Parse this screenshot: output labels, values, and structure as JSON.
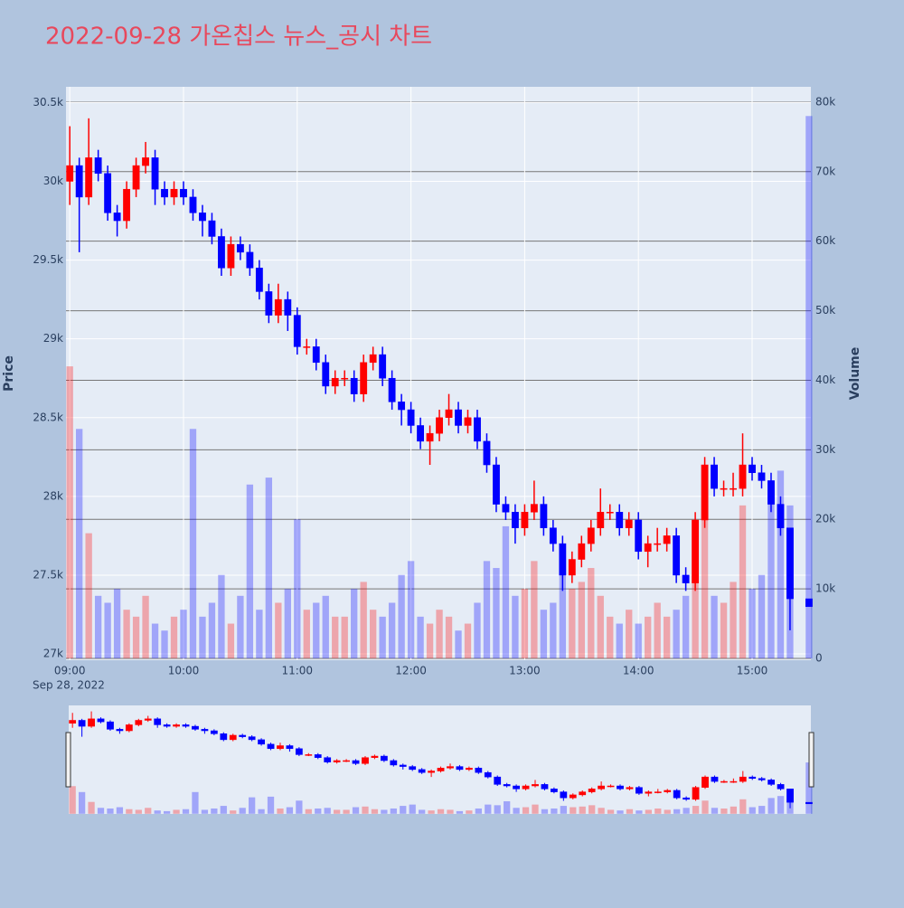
{
  "chart_data": {
    "type": "candlestick",
    "title": "2022-09-28 가온칩스 뉴스_공시 차트",
    "y_label": "Price",
    "y2_label": "Volume",
    "x_date_label": "Sep 28, 2022",
    "increasing_color": "#ff0000",
    "decreasing_color": "#0000ff",
    "grid": true,
    "x": [
      "2022-09-28 09:00",
      "2022-09-28 09:05",
      "2022-09-28 09:10",
      "2022-09-28 09:15",
      "2022-09-28 09:20",
      "2022-09-28 09:25",
      "2022-09-28 09:30",
      "2022-09-28 09:35",
      "2022-09-28 09:40",
      "2022-09-28 09:45",
      "2022-09-28 09:50",
      "2022-09-28 09:55",
      "2022-09-28 10:00",
      "2022-09-28 10:05",
      "2022-09-28 10:10",
      "2022-09-28 10:15",
      "2022-09-28 10:20",
      "2022-09-28 10:25",
      "2022-09-28 10:30",
      "2022-09-28 10:35",
      "2022-09-28 10:40",
      "2022-09-28 10:45",
      "2022-09-28 10:50",
      "2022-09-28 10:55",
      "2022-09-28 11:00",
      "2022-09-28 11:05",
      "2022-09-28 11:10",
      "2022-09-28 11:15",
      "2022-09-28 11:20",
      "2022-09-28 11:25",
      "2022-09-28 11:30",
      "2022-09-28 11:35",
      "2022-09-28 11:40",
      "2022-09-28 11:45",
      "2022-09-28 11:50",
      "2022-09-28 11:55",
      "2022-09-28 12:00",
      "2022-09-28 12:05",
      "2022-09-28 12:10",
      "2022-09-28 12:15",
      "2022-09-28 12:20",
      "2022-09-28 12:25",
      "2022-09-28 12:30",
      "2022-09-28 12:35",
      "2022-09-28 12:40",
      "2022-09-28 12:45",
      "2022-09-28 12:50",
      "2022-09-28 12:55",
      "2022-09-28 13:00",
      "2022-09-28 13:05",
      "2022-09-28 13:10",
      "2022-09-28 13:15",
      "2022-09-28 13:20",
      "2022-09-28 13:25",
      "2022-09-28 13:30",
      "2022-09-28 13:35",
      "2022-09-28 13:40",
      "2022-09-28 13:45",
      "2022-09-28 13:50",
      "2022-09-28 13:55",
      "2022-09-28 14:00",
      "2022-09-28 14:05",
      "2022-09-28 14:10",
      "2022-09-28 14:15",
      "2022-09-28 14:20",
      "2022-09-28 14:25",
      "2022-09-28 14:30",
      "2022-09-28 14:35",
      "2022-09-28 14:40",
      "2022-09-28 14:45",
      "2022-09-28 14:50",
      "2022-09-28 14:55",
      "2022-09-28 15:00",
      "2022-09-28 15:05",
      "2022-09-28 15:10",
      "2022-09-28 15:15",
      "2022-09-28 15:20",
      "2022-09-28 15:30"
    ],
    "open": [
      30000,
      30100,
      29900,
      30150,
      30050,
      29800,
      29750,
      29950,
      30100,
      30150,
      29950,
      29900,
      29950,
      29900,
      29800,
      29750,
      29650,
      29450,
      29600,
      29550,
      29450,
      29300,
      29150,
      29250,
      29150,
      28950,
      28950,
      28850,
      28700,
      28750,
      28750,
      28650,
      28850,
      28900,
      28750,
      28600,
      28550,
      28450,
      28350,
      28400,
      28500,
      28550,
      28450,
      28500,
      28350,
      28200,
      27950,
      27900,
      27800,
      27900,
      27950,
      27800,
      27700,
      27500,
      27600,
      27700,
      27800,
      27900,
      27900,
      27800,
      27850,
      27650,
      27700,
      27700,
      27750,
      27500,
      27450,
      27850,
      28200,
      28050,
      28050,
      28050,
      28200,
      28150,
      28100,
      27950,
      27800,
      27350
    ],
    "high": [
      30350,
      30150,
      30400,
      30200,
      30100,
      29850,
      30000,
      30150,
      30250,
      30200,
      30000,
      30000,
      30000,
      29950,
      29850,
      29800,
      29700,
      29650,
      29650,
      29600,
      29500,
      29350,
      29350,
      29300,
      29200,
      29000,
      29000,
      28900,
      28800,
      28800,
      28800,
      28900,
      28950,
      28950,
      28800,
      28650,
      28600,
      28500,
      28450,
      28550,
      28650,
      28600,
      28550,
      28550,
      28400,
      28250,
      28000,
      27950,
      27950,
      28100,
      28000,
      27850,
      27750,
      27650,
      27750,
      27850,
      28050,
      27950,
      27950,
      27900,
      27900,
      27750,
      27800,
      27800,
      27800,
      27550,
      27900,
      28250,
      28250,
      28100,
      28150,
      28400,
      28250,
      28200,
      28150,
      28000,
      27800,
      27350
    ],
    "low": [
      29850,
      29550,
      29850,
      30000,
      29750,
      29650,
      29700,
      29900,
      30050,
      29850,
      29850,
      29850,
      29850,
      29750,
      29650,
      29600,
      29400,
      29400,
      29500,
      29400,
      29250,
      29100,
      29100,
      29050,
      28900,
      28900,
      28800,
      28650,
      28650,
      28700,
      28600,
      28600,
      28800,
      28700,
      28550,
      28450,
      28400,
      28300,
      28200,
      28350,
      28450,
      28400,
      28400,
      28300,
      28150,
      27900,
      27850,
      27700,
      27750,
      27850,
      27750,
      27650,
      27400,
      27450,
      27550,
      27650,
      27750,
      27850,
      27750,
      27750,
      27600,
      27550,
      27650,
      27650,
      27450,
      27400,
      27400,
      27800,
      28000,
      28000,
      28000,
      28000,
      28100,
      28050,
      27900,
      27750,
      27150,
      27300
    ],
    "close": [
      30100,
      29900,
      30150,
      30050,
      29800,
      29750,
      29950,
      30100,
      30150,
      29950,
      29900,
      29950,
      29900,
      29800,
      29750,
      29650,
      29450,
      29600,
      29550,
      29450,
      29300,
      29150,
      29250,
      29150,
      28950,
      28950,
      28850,
      28700,
      28750,
      28750,
      28650,
      28850,
      28900,
      28750,
      28600,
      28550,
      28450,
      28350,
      28400,
      28500,
      28550,
      28450,
      28500,
      28350,
      28200,
      27950,
      27900,
      27800,
      27900,
      27950,
      27800,
      27700,
      27500,
      27600,
      27700,
      27800,
      27900,
      27900,
      27800,
      27850,
      27650,
      27700,
      27700,
      27750,
      27500,
      27450,
      27850,
      28200,
      28050,
      28050,
      28050,
      28200,
      28150,
      28100,
      27950,
      27800,
      27350,
      27300
    ],
    "volume": [
      42000,
      33000,
      18000,
      9000,
      8000,
      10000,
      7000,
      6000,
      9000,
      5000,
      4000,
      6000,
      7000,
      33000,
      6000,
      8000,
      12000,
      5000,
      9000,
      25000,
      7000,
      26000,
      8000,
      10000,
      20000,
      7000,
      8000,
      9000,
      6000,
      6000,
      10000,
      11000,
      7000,
      6000,
      8000,
      12000,
      14000,
      6000,
      5000,
      7000,
      6000,
      4000,
      5000,
      8000,
      14000,
      13000,
      19000,
      9000,
      10000,
      14000,
      7000,
      8000,
      12000,
      10000,
      11000,
      13000,
      9000,
      6000,
      5000,
      7000,
      5000,
      6000,
      8000,
      6000,
      7000,
      9000,
      12000,
      20000,
      9000,
      8000,
      11000,
      22000,
      10000,
      12000,
      24000,
      27000,
      22000,
      78000
    ],
    "xlim": [
      "2022-09-28 08:58",
      "2022-09-28 15:31"
    ],
    "xticks": [
      {
        "value": "2022-09-28 09:00",
        "label": "09:00"
      },
      {
        "value": "2022-09-28 10:00",
        "label": "10:00"
      },
      {
        "value": "2022-09-28 11:00",
        "label": "11:00"
      },
      {
        "value": "2022-09-28 12:00",
        "label": "12:00"
      },
      {
        "value": "2022-09-28 13:00",
        "label": "13:00"
      },
      {
        "value": "2022-09-28 14:00",
        "label": "14:00"
      },
      {
        "value": "2022-09-28 15:00",
        "label": "15:00"
      }
    ],
    "ylim": [
      26960,
      30600
    ],
    "yticks": [
      {
        "value": 27000,
        "label": "27k"
      },
      {
        "value": 27500,
        "label": "27.5k"
      },
      {
        "value": 28000,
        "label": "28k"
      },
      {
        "value": 28500,
        "label": "28.5k"
      },
      {
        "value": 29000,
        "label": "29k"
      },
      {
        "value": 29500,
        "label": "29.5k"
      },
      {
        "value": 30000,
        "label": "30k"
      },
      {
        "value": 30500,
        "label": "30.5k"
      }
    ],
    "y2lim": [
      -260,
      82200
    ],
    "y2ticks": [
      0,
      {
        "value": 10000,
        "label": "10k"
      },
      {
        "value": 20000,
        "label": "20k"
      },
      {
        "value": 30000,
        "label": "30k"
      },
      {
        "value": 40000,
        "label": "40k"
      },
      {
        "value": 50000,
        "label": "50k"
      },
      {
        "value": 60000,
        "label": "60k"
      },
      {
        "value": 70000,
        "label": "70k"
      },
      {
        "value": 80000,
        "label": "80k"
      }
    ]
  }
}
